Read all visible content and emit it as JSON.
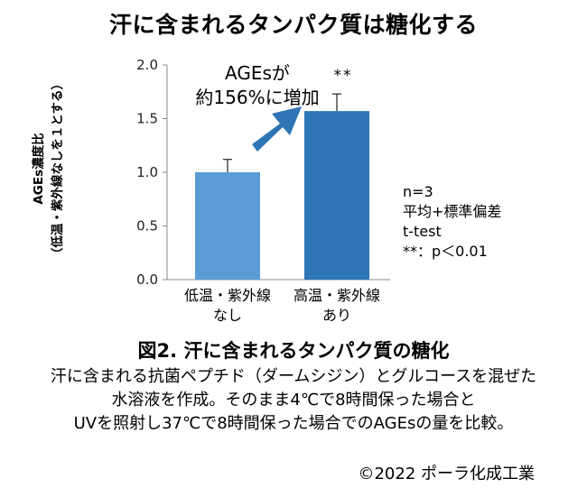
{
  "chart_data": {
    "type": "bar",
    "title": "汗に含まれるタンパク質は糖化する",
    "ylabel_lines": [
      "AGEs濃度比",
      "（低温・紫外線なしを１とする）"
    ],
    "categories": [
      {
        "lines": [
          "低温・紫外線",
          "なし"
        ]
      },
      {
        "lines": [
          "高温・紫外線",
          "あり"
        ]
      }
    ],
    "values": [
      1.0,
      1.57
    ],
    "errors": [
      0.12,
      0.16
    ],
    "bar_colors": [
      "#5b9bd5",
      "#2e75b6"
    ],
    "arrow_color": "#2e75b6",
    "ylim": [
      0,
      2
    ],
    "yticks": [
      "0.0",
      "0.5",
      "1.0",
      "1.5",
      "2.0"
    ],
    "ytick_values": [
      0,
      0.5,
      1.0,
      1.5,
      2.0
    ],
    "annotation_lines": [
      "AGEsが",
      "約156%に増加"
    ],
    "significance": "**",
    "stats_lines": [
      "n=3",
      "平均+標準偏差",
      "t-test",
      "**：p＜0.01"
    ],
    "grid": false,
    "legend": "none"
  },
  "caption": {
    "figure_title": "図2.  汗に含まれるタンパク質の糖化",
    "description_lines": [
      "汗に含まれる抗菌ペプチド（ダームシジン）とグルコースを混ぜた",
      "水溶液を作成。そのまま4℃で8時間保った場合と",
      "UVを照射し37℃で8時間保った場合でのAGEsの量を比較。"
    ],
    "copyright": "©2022 ポーラ化成工業"
  }
}
